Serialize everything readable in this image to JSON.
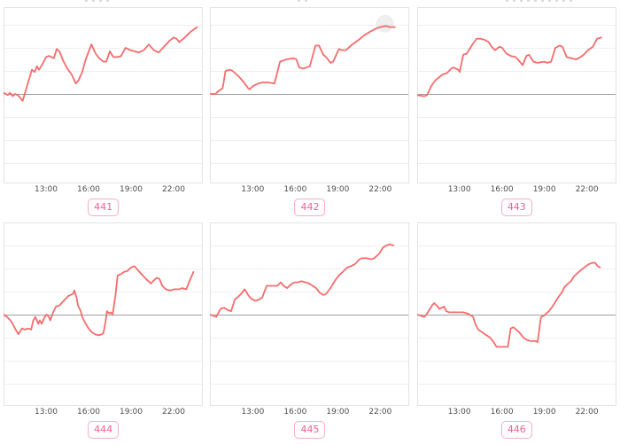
{
  "style": {
    "line_color": "#f56c6c",
    "grid_color": "#efefef",
    "zero_line_color": "#9e9e9e",
    "plot_border_color": "#e3e3e3",
    "tick_text_color": "#4d4d4d",
    "badge_text_color": "#ef6292",
    "badge_border_color": "#f8aec6",
    "halo_color": "rgba(180,180,180,0.22)"
  },
  "chart_data": [
    {
      "type": "line",
      "label": "441",
      "x_tick_labels": [
        "13:00",
        "16:00",
        "19:00",
        "22:00"
      ],
      "x_tick_hours": [
        13,
        16,
        19,
        22
      ],
      "x_unit": "time of day (hours, decimal)",
      "y_unit": "gridline units above baseline (baseline = 0, unlabeled y-axis)",
      "x_range": [
        10,
        24
      ],
      "points": [
        [
          10.0,
          0.05
        ],
        [
          10.3,
          -0.05
        ],
        [
          10.45,
          0.05
        ],
        [
          10.65,
          -0.1
        ],
        [
          10.8,
          0.0
        ],
        [
          11.0,
          -0.05
        ],
        [
          11.15,
          -0.15
        ],
        [
          11.35,
          -0.3
        ],
        [
          12.0,
          1.05
        ],
        [
          12.2,
          0.95
        ],
        [
          12.35,
          1.2
        ],
        [
          12.5,
          1.05
        ],
        [
          12.75,
          1.3
        ],
        [
          13.0,
          1.6
        ],
        [
          13.2,
          1.65
        ],
        [
          13.4,
          1.6
        ],
        [
          13.55,
          1.55
        ],
        [
          13.75,
          1.95
        ],
        [
          13.95,
          1.85
        ],
        [
          14.2,
          1.45
        ],
        [
          14.5,
          1.1
        ],
        [
          14.8,
          0.85
        ],
        [
          15.1,
          0.45
        ],
        [
          15.3,
          0.6
        ],
        [
          15.55,
          0.95
        ],
        [
          15.8,
          1.5
        ],
        [
          16.2,
          2.15
        ],
        [
          16.5,
          1.75
        ],
        [
          16.75,
          1.55
        ],
        [
          17.05,
          1.4
        ],
        [
          17.25,
          1.4
        ],
        [
          17.5,
          1.85
        ],
        [
          17.75,
          1.6
        ],
        [
          18.05,
          1.6
        ],
        [
          18.3,
          1.65
        ],
        [
          18.6,
          2.0
        ],
        [
          18.95,
          1.9
        ],
        [
          19.25,
          1.85
        ],
        [
          19.55,
          1.8
        ],
        [
          19.9,
          1.9
        ],
        [
          20.25,
          2.15
        ],
        [
          20.6,
          1.9
        ],
        [
          20.95,
          1.8
        ],
        [
          21.4,
          2.1
        ],
        [
          21.7,
          2.3
        ],
        [
          22.0,
          2.45
        ],
        [
          22.2,
          2.4
        ],
        [
          22.4,
          2.25
        ],
        [
          22.7,
          2.4
        ],
        [
          22.95,
          2.55
        ],
        [
          23.2,
          2.7
        ],
        [
          23.65,
          2.9
        ]
      ]
    },
    {
      "type": "line",
      "label": "442",
      "x_tick_labels": [
        "13:00",
        "16:00",
        "19:00",
        "22:00"
      ],
      "x_tick_hours": [
        13,
        16,
        19,
        22
      ],
      "x_unit": "time of day (hours, decimal)",
      "y_unit": "gridline units above baseline (baseline = 0, unlabeled y-axis)",
      "x_range": [
        10,
        24
      ],
      "halo": {
        "t": 22.35,
        "v": 3.05,
        "r": 10
      },
      "points": [
        [
          10.0,
          0.0
        ],
        [
          10.4,
          0.0
        ],
        [
          10.55,
          0.1
        ],
        [
          10.9,
          0.25
        ],
        [
          11.1,
          1.0
        ],
        [
          11.4,
          1.05
        ],
        [
          11.6,
          1.0
        ],
        [
          12.05,
          0.75
        ],
        [
          12.4,
          0.5
        ],
        [
          12.7,
          0.25
        ],
        [
          12.8,
          0.2
        ],
        [
          13.05,
          0.35
        ],
        [
          13.4,
          0.45
        ],
        [
          13.7,
          0.5
        ],
        [
          14.1,
          0.5
        ],
        [
          14.55,
          0.45
        ],
        [
          14.95,
          1.4
        ],
        [
          15.4,
          1.5
        ],
        [
          15.9,
          1.55
        ],
        [
          16.1,
          1.5
        ],
        [
          16.3,
          1.15
        ],
        [
          16.6,
          1.1
        ],
        [
          16.8,
          1.15
        ],
        [
          17.05,
          1.2
        ],
        [
          17.45,
          2.1
        ],
        [
          17.7,
          2.1
        ],
        [
          18.0,
          1.7
        ],
        [
          18.2,
          1.6
        ],
        [
          18.5,
          1.35
        ],
        [
          18.7,
          1.4
        ],
        [
          19.1,
          1.95
        ],
        [
          19.3,
          1.9
        ],
        [
          19.6,
          1.9
        ],
        [
          20.05,
          2.15
        ],
        [
          20.5,
          2.35
        ],
        [
          20.9,
          2.55
        ],
        [
          21.3,
          2.7
        ],
        [
          21.75,
          2.85
        ],
        [
          22.05,
          2.9
        ],
        [
          22.4,
          2.95
        ],
        [
          22.7,
          2.9
        ],
        [
          23.05,
          2.9
        ]
      ]
    },
    {
      "type": "line",
      "label": "443",
      "x_tick_labels": [
        "13:00",
        "16:00",
        "19:00",
        "22:00"
      ],
      "x_tick_hours": [
        13,
        16,
        19,
        22
      ],
      "x_unit": "time of day (hours, decimal)",
      "y_unit": "gridline units above baseline (baseline = 0, unlabeled y-axis)",
      "x_range": [
        10,
        24
      ],
      "points": [
        [
          10.0,
          -0.05
        ],
        [
          10.5,
          -0.1
        ],
        [
          10.7,
          -0.05
        ],
        [
          11.0,
          0.35
        ],
        [
          11.3,
          0.6
        ],
        [
          11.6,
          0.75
        ],
        [
          11.8,
          0.85
        ],
        [
          12.1,
          0.9
        ],
        [
          12.4,
          1.1
        ],
        [
          12.55,
          1.15
        ],
        [
          12.9,
          1.05
        ],
        [
          13.0,
          0.95
        ],
        [
          13.25,
          1.7
        ],
        [
          13.5,
          1.75
        ],
        [
          13.9,
          2.15
        ],
        [
          14.2,
          2.4
        ],
        [
          14.45,
          2.4
        ],
        [
          14.75,
          2.35
        ],
        [
          15.05,
          2.25
        ],
        [
          15.25,
          2.05
        ],
        [
          15.5,
          1.9
        ],
        [
          15.8,
          2.05
        ],
        [
          16.0,
          2.0
        ],
        [
          16.3,
          1.75
        ],
        [
          16.6,
          1.65
        ],
        [
          16.95,
          1.6
        ],
        [
          17.1,
          1.5
        ],
        [
          17.45,
          1.25
        ],
        [
          17.7,
          1.65
        ],
        [
          17.9,
          1.7
        ],
        [
          18.2,
          1.4
        ],
        [
          18.5,
          1.35
        ],
        [
          18.95,
          1.4
        ],
        [
          19.2,
          1.35
        ],
        [
          19.45,
          1.4
        ],
        [
          19.75,
          2.0
        ],
        [
          20.05,
          2.1
        ],
        [
          20.25,
          2.05
        ],
        [
          20.55,
          1.6
        ],
        [
          20.9,
          1.55
        ],
        [
          21.2,
          1.5
        ],
        [
          21.4,
          1.55
        ],
        [
          21.75,
          1.7
        ],
        [
          22.05,
          1.9
        ],
        [
          22.4,
          2.05
        ],
        [
          22.7,
          2.4
        ],
        [
          23.0,
          2.45
        ]
      ]
    },
    {
      "type": "line",
      "label": "444",
      "x_tick_labels": [
        "13:00",
        "16:00",
        "19:00",
        "22:00"
      ],
      "x_tick_hours": [
        13,
        16,
        19,
        22
      ],
      "x_unit": "time of day (hours, decimal)",
      "y_unit": "gridline units above baseline (baseline = 0, unlabeled y-axis)",
      "x_range": [
        10,
        24
      ],
      "points": [
        [
          10.0,
          0.0
        ],
        [
          10.25,
          -0.1
        ],
        [
          10.55,
          -0.3
        ],
        [
          10.9,
          -0.7
        ],
        [
          11.05,
          -0.85
        ],
        [
          11.3,
          -0.6
        ],
        [
          11.5,
          -0.65
        ],
        [
          11.75,
          -0.6
        ],
        [
          11.95,
          -0.65
        ],
        [
          12.1,
          -0.25
        ],
        [
          12.25,
          -0.1
        ],
        [
          12.45,
          -0.4
        ],
        [
          12.55,
          -0.25
        ],
        [
          12.7,
          -0.4
        ],
        [
          12.9,
          -0.1
        ],
        [
          13.05,
          0.0
        ],
        [
          13.2,
          -0.1
        ],
        [
          13.3,
          -0.25
        ],
        [
          13.5,
          0.1
        ],
        [
          13.7,
          0.35
        ],
        [
          13.95,
          0.4
        ],
        [
          14.25,
          0.6
        ],
        [
          14.55,
          0.8
        ],
        [
          14.9,
          0.9
        ],
        [
          15.0,
          1.05
        ],
        [
          15.15,
          0.75
        ],
        [
          15.25,
          0.4
        ],
        [
          15.45,
          0.15
        ],
        [
          15.55,
          -0.1
        ],
        [
          15.8,
          -0.4
        ],
        [
          16.0,
          -0.6
        ],
        [
          16.2,
          -0.75
        ],
        [
          16.45,
          -0.85
        ],
        [
          16.7,
          -0.9
        ],
        [
          16.95,
          -0.85
        ],
        [
          17.05,
          -0.8
        ],
        [
          17.2,
          -0.3
        ],
        [
          17.3,
          0.15
        ],
        [
          17.45,
          0.05
        ],
        [
          17.55,
          0.1
        ],
        [
          17.7,
          0.0
        ],
        [
          17.9,
          0.85
        ],
        [
          18.05,
          1.7
        ],
        [
          18.25,
          1.75
        ],
        [
          18.5,
          1.85
        ],
        [
          18.75,
          1.9
        ],
        [
          19.0,
          2.05
        ],
        [
          19.25,
          2.1
        ],
        [
          19.45,
          1.95
        ],
        [
          19.75,
          1.75
        ],
        [
          20.05,
          1.55
        ],
        [
          20.4,
          1.35
        ],
        [
          20.55,
          1.45
        ],
        [
          20.8,
          1.6
        ],
        [
          21.0,
          1.55
        ],
        [
          21.2,
          1.25
        ],
        [
          21.45,
          1.1
        ],
        [
          21.75,
          1.05
        ],
        [
          22.05,
          1.1
        ],
        [
          22.4,
          1.1
        ],
        [
          22.6,
          1.15
        ],
        [
          22.9,
          1.1
        ],
        [
          23.05,
          1.35
        ],
        [
          23.4,
          1.85
        ]
      ]
    },
    {
      "type": "line",
      "label": "445",
      "x_tick_labels": [
        "13:00",
        "16:00",
        "19:00",
        "22:00"
      ],
      "x_tick_hours": [
        13,
        16,
        19,
        22
      ],
      "x_unit": "time of day (hours, decimal)",
      "y_unit": "gridline units above baseline (baseline = 0, unlabeled y-axis)",
      "x_range": [
        10,
        24
      ],
      "points": [
        [
          10.0,
          0.0
        ],
        [
          10.25,
          -0.05
        ],
        [
          10.45,
          -0.1
        ],
        [
          10.75,
          0.25
        ],
        [
          11.0,
          0.3
        ],
        [
          11.25,
          0.2
        ],
        [
          11.5,
          0.15
        ],
        [
          11.75,
          0.65
        ],
        [
          11.95,
          0.75
        ],
        [
          12.2,
          0.9
        ],
        [
          12.45,
          1.1
        ],
        [
          12.7,
          0.85
        ],
        [
          12.9,
          0.7
        ],
        [
          13.2,
          0.6
        ],
        [
          13.45,
          0.65
        ],
        [
          13.7,
          0.75
        ],
        [
          14.0,
          1.25
        ],
        [
          14.25,
          1.25
        ],
        [
          14.5,
          1.25
        ],
        [
          14.75,
          1.25
        ],
        [
          15.0,
          1.4
        ],
        [
          15.2,
          1.25
        ],
        [
          15.45,
          1.15
        ],
        [
          15.7,
          1.3
        ],
        [
          15.95,
          1.4
        ],
        [
          16.2,
          1.4
        ],
        [
          16.45,
          1.45
        ],
        [
          16.75,
          1.4
        ],
        [
          17.0,
          1.35
        ],
        [
          17.25,
          1.25
        ],
        [
          17.5,
          1.15
        ],
        [
          17.75,
          0.95
        ],
        [
          18.0,
          0.85
        ],
        [
          18.2,
          0.9
        ],
        [
          18.5,
          1.15
        ],
        [
          18.8,
          1.45
        ],
        [
          19.1,
          1.7
        ],
        [
          19.45,
          1.9
        ],
        [
          19.7,
          2.05
        ],
        [
          19.95,
          2.1
        ],
        [
          20.25,
          2.2
        ],
        [
          20.55,
          2.4
        ],
        [
          20.75,
          2.45
        ],
        [
          21.05,
          2.45
        ],
        [
          21.4,
          2.4
        ],
        [
          21.6,
          2.45
        ],
        [
          21.95,
          2.65
        ],
        [
          22.2,
          2.9
        ],
        [
          22.45,
          3.0
        ],
        [
          22.7,
          3.05
        ],
        [
          22.95,
          3.0
        ]
      ]
    },
    {
      "type": "line",
      "label": "446",
      "x_tick_labels": [
        "13:00",
        "16:00",
        "19:00",
        "22:00"
      ],
      "x_tick_hours": [
        13,
        16,
        19,
        22
      ],
      "x_unit": "time of day (hours, decimal)",
      "y_unit": "gridline units above baseline (baseline = 0, unlabeled y-axis)",
      "x_range": [
        10,
        24
      ],
      "points": [
        [
          10.0,
          0.0
        ],
        [
          10.25,
          -0.05
        ],
        [
          10.5,
          -0.1
        ],
        [
          10.65,
          0.0
        ],
        [
          10.8,
          0.15
        ],
        [
          11.05,
          0.4
        ],
        [
          11.2,
          0.5
        ],
        [
          11.45,
          0.35
        ],
        [
          11.55,
          0.25
        ],
        [
          11.75,
          0.3
        ],
        [
          11.9,
          0.35
        ],
        [
          12.05,
          0.15
        ],
        [
          12.25,
          0.1
        ],
        [
          12.55,
          0.1
        ],
        [
          12.9,
          0.1
        ],
        [
          13.25,
          0.1
        ],
        [
          13.55,
          0.05
        ],
        [
          13.7,
          0.0
        ],
        [
          13.95,
          -0.1
        ],
        [
          14.1,
          -0.4
        ],
        [
          14.3,
          -0.65
        ],
        [
          14.55,
          -0.75
        ],
        [
          14.9,
          -0.9
        ],
        [
          15.15,
          -1.0
        ],
        [
          15.4,
          -1.2
        ],
        [
          15.6,
          -1.4
        ],
        [
          15.9,
          -1.4
        ],
        [
          16.2,
          -1.4
        ],
        [
          16.4,
          -1.4
        ],
        [
          16.6,
          -0.6
        ],
        [
          16.8,
          -0.55
        ],
        [
          17.0,
          -0.65
        ],
        [
          17.25,
          -0.8
        ],
        [
          17.5,
          -1.0
        ],
        [
          17.75,
          -1.1
        ],
        [
          18.0,
          -1.15
        ],
        [
          18.2,
          -1.15
        ],
        [
          18.4,
          -1.15
        ],
        [
          18.5,
          -1.2
        ],
        [
          18.7,
          -0.25
        ],
        [
          18.75,
          -0.1
        ],
        [
          18.95,
          -0.05
        ],
        [
          19.1,
          0.05
        ],
        [
          19.3,
          0.15
        ],
        [
          19.55,
          0.35
        ],
        [
          19.75,
          0.55
        ],
        [
          19.95,
          0.75
        ],
        [
          20.2,
          0.95
        ],
        [
          20.4,
          1.2
        ],
        [
          20.65,
          1.35
        ],
        [
          20.85,
          1.45
        ],
        [
          21.05,
          1.65
        ],
        [
          21.4,
          1.85
        ],
        [
          21.6,
          1.95
        ],
        [
          21.9,
          2.1
        ],
        [
          22.15,
          2.2
        ],
        [
          22.4,
          2.25
        ],
        [
          22.55,
          2.25
        ],
        [
          22.75,
          2.1
        ],
        [
          22.9,
          2.05
        ]
      ]
    }
  ]
}
